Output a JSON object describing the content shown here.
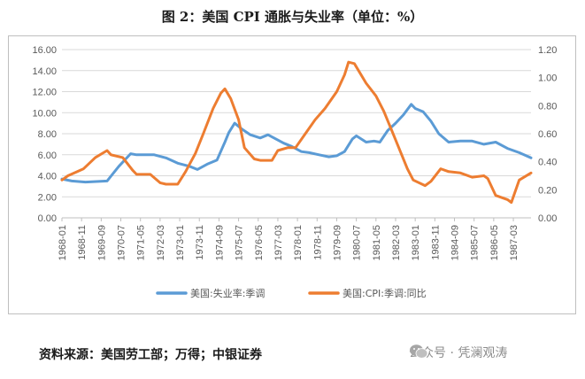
{
  "figure_title": "图 2：美国 CPI 通胀与失业率（单位：%）",
  "source_text": "资料来源：美国劳工部；万得；中银证券",
  "watermark": {
    "text": "公众号 · 凭澜观涛",
    "icon": "wechat-icon"
  },
  "colors": {
    "unemployment": "#5B9BD5",
    "cpi": "#ED7D31",
    "grid": "#d9d9d9",
    "axis": "#bfbfbf"
  },
  "chart_data": {
    "type": "line",
    "title": "",
    "x_tick_labels": [
      "1968-01",
      "1968-11",
      "1969-09",
      "1970-07",
      "1971-05",
      "1972-03",
      "1973-01",
      "1973-11",
      "1974-09",
      "1975-07",
      "1976-05",
      "1977-03",
      "1978-01",
      "1978-11",
      "1979-09",
      "1980-07",
      "1981-05",
      "1982-03",
      "1983-01",
      "1983-11",
      "1984-09",
      "1985-07",
      "1986-05",
      "1987-03"
    ],
    "x_range": [
      "1968-01",
      "1987-12"
    ],
    "y_left": {
      "min": 0,
      "max": 16,
      "ticks": [
        "0.00",
        "2.00",
        "4.00",
        "6.00",
        "8.00",
        "10.00",
        "12.00",
        "14.00",
        "16.00"
      ]
    },
    "y_right": {
      "min": 0,
      "max": 1.2,
      "ticks": [
        "0.00",
        "0.20",
        "0.40",
        "0.60",
        "0.80",
        "1.00",
        "1.20"
      ]
    },
    "grid": "horizontal",
    "legend_position": "bottom",
    "series": [
      {
        "name": "美国:失业率:季调",
        "axis": "left",
        "x": [
          "1968-01",
          "1968-06",
          "1969-01",
          "1969-12",
          "1970-06",
          "1970-12",
          "1971-03",
          "1971-12",
          "1972-06",
          "1972-12",
          "1973-06",
          "1973-10",
          "1974-03",
          "1974-08",
          "1974-12",
          "1975-02",
          "1975-05",
          "1975-09",
          "1976-01",
          "1976-06",
          "1976-10",
          "1977-02",
          "1977-06",
          "1977-10",
          "1978-03",
          "1978-07",
          "1978-12",
          "1979-05",
          "1979-09",
          "1980-01",
          "1980-05",
          "1980-07",
          "1980-12",
          "1981-04",
          "1981-07",
          "1981-11",
          "1982-03",
          "1982-07",
          "1982-11",
          "1983-01",
          "1983-05",
          "1983-09",
          "1984-01",
          "1984-06",
          "1984-12",
          "1985-06",
          "1985-12",
          "1986-06",
          "1986-12",
          "1987-06",
          "1987-12"
        ],
        "values": [
          3.7,
          3.5,
          3.4,
          3.5,
          4.9,
          6.1,
          6.0,
          6.0,
          5.7,
          5.2,
          4.9,
          4.6,
          5.1,
          5.5,
          7.2,
          8.1,
          9.0,
          8.4,
          7.9,
          7.6,
          7.9,
          7.5,
          7.1,
          6.8,
          6.3,
          6.2,
          6.0,
          5.8,
          5.9,
          6.3,
          7.5,
          7.8,
          7.2,
          7.3,
          7.2,
          8.3,
          9.0,
          9.8,
          10.8,
          10.4,
          10.1,
          9.2,
          8.0,
          7.2,
          7.3,
          7.3,
          7.0,
          7.2,
          6.6,
          6.2,
          5.7
        ]
      },
      {
        "name": "美国:CPI:季调:同比",
        "axis": "right",
        "x": [
          "1968-01",
          "1968-04",
          "1968-12",
          "1969-06",
          "1969-12",
          "1970-02",
          "1970-08",
          "1971-01",
          "1971-03",
          "1971-10",
          "1972-03",
          "1972-06",
          "1972-12",
          "1973-04",
          "1973-09",
          "1974-01",
          "1974-06",
          "1974-10",
          "1974-12",
          "1975-03",
          "1975-07",
          "1975-10",
          "1976-03",
          "1976-06",
          "1976-12",
          "1977-03",
          "1977-08",
          "1977-12",
          "1978-05",
          "1978-10",
          "1979-03",
          "1979-09",
          "1980-01",
          "1980-03",
          "1980-06",
          "1980-12",
          "1981-05",
          "1981-09",
          "1982-02",
          "1982-09",
          "1982-12",
          "1983-06",
          "1983-09",
          "1984-02",
          "1984-06",
          "1984-12",
          "1985-06",
          "1985-12",
          "1986-02",
          "1986-06",
          "1986-12",
          "1987-02",
          "1987-06",
          "1987-12"
        ],
        "values": [
          0.27,
          0.3,
          0.35,
          0.43,
          0.48,
          0.45,
          0.43,
          0.34,
          0.31,
          0.31,
          0.25,
          0.24,
          0.24,
          0.33,
          0.46,
          0.6,
          0.78,
          0.89,
          0.92,
          0.85,
          0.7,
          0.5,
          0.42,
          0.41,
          0.41,
          0.48,
          0.5,
          0.5,
          0.6,
          0.7,
          0.78,
          0.9,
          1.02,
          1.11,
          1.1,
          0.96,
          0.87,
          0.76,
          0.59,
          0.35,
          0.27,
          0.23,
          0.26,
          0.35,
          0.33,
          0.32,
          0.29,
          0.3,
          0.28,
          0.16,
          0.13,
          0.11,
          0.27,
          0.32
        ]
      }
    ]
  }
}
